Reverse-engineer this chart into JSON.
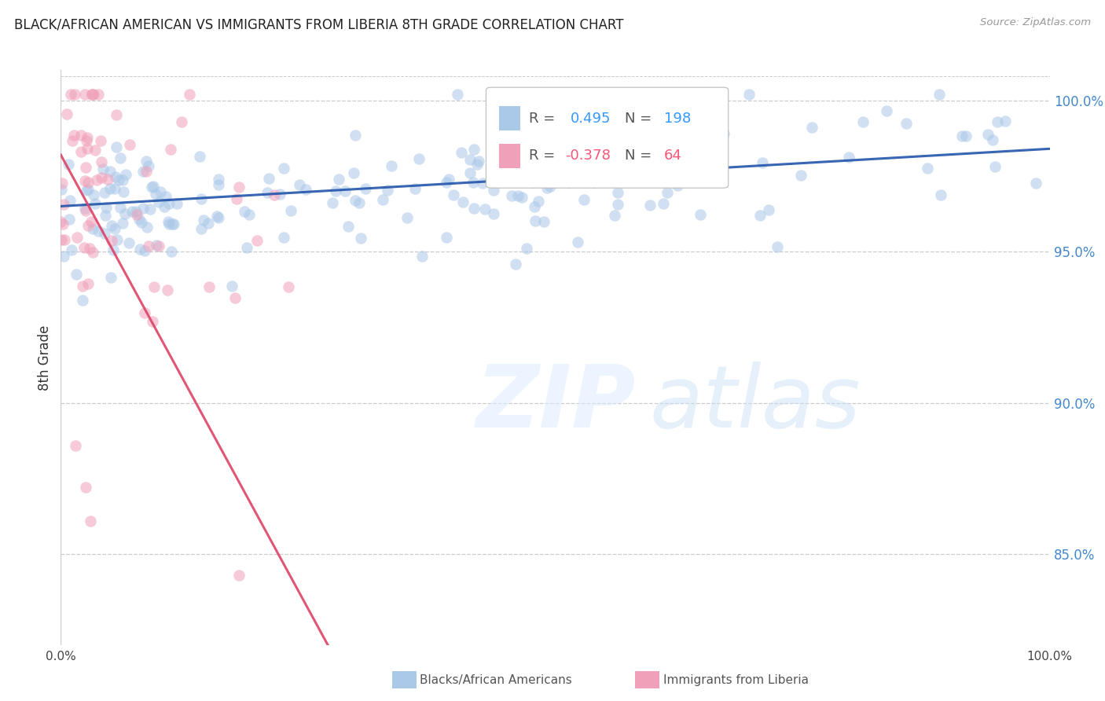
{
  "title": "BLACK/AFRICAN AMERICAN VS IMMIGRANTS FROM LIBERIA 8TH GRADE CORRELATION CHART",
  "source": "Source: ZipAtlas.com",
  "ylabel": "8th Grade",
  "blue_R": 0.495,
  "blue_N": 198,
  "pink_R": -0.378,
  "pink_N": 64,
  "blue_color": "#aac8e8",
  "pink_color": "#f0a0b8",
  "blue_line_color": "#2255aa",
  "pink_line_color": "#dd4466",
  "scatter_alpha": 0.55,
  "scatter_size": 110,
  "background_color": "#ffffff",
  "grid_color": "#cccccc",
  "title_color": "#222222",
  "source_color": "#999999",
  "right_tick_color": "#4488cc",
  "ymin": 0.82,
  "ymax": 1.01,
  "xmin": 0.0,
  "xmax": 1.0,
  "ytick_positions": [
    1.0,
    0.95,
    0.9,
    0.85
  ],
  "ytick_labels": [
    "100.0%",
    "95.0%",
    "90.0%",
    "85.0%"
  ]
}
